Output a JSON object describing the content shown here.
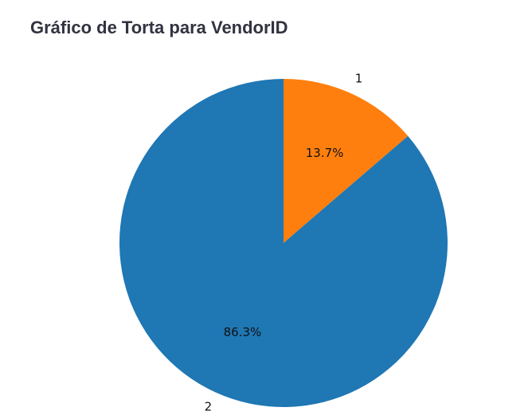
{
  "page": {
    "title": "Gráfico de Torta para VendorID"
  },
  "chart_data": {
    "type": "pie",
    "title": "Gráfico de Torta para VendorID",
    "slices": [
      {
        "label": "1",
        "value": 13.7,
        "pct_label": "13.7%",
        "color": "#ff7f0e"
      },
      {
        "label": "2",
        "value": 86.3,
        "pct_label": "86.3%",
        "color": "#1f77b4"
      }
    ],
    "start_angle": 90,
    "direction": "clockwise",
    "legend": "none"
  }
}
